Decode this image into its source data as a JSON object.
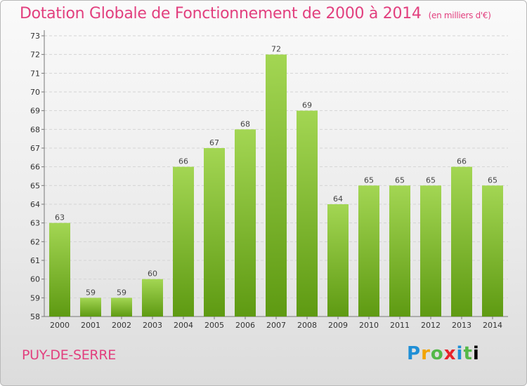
{
  "header": {
    "title": "Dotation Globale de Fonctionnement de 2000 à 2014",
    "unit": "(en milliers d'€)"
  },
  "footer": {
    "commune": "PUY-DE-SERRE",
    "logo": "Proxiti"
  },
  "chart_data": {
    "type": "bar",
    "title": "Dotation Globale de Fonctionnement de 2000 à 2014",
    "subtitle": "(en milliers d'€)",
    "xlabel": "",
    "ylabel": "",
    "categories": [
      "2000",
      "2001",
      "2002",
      "2003",
      "2004",
      "2005",
      "2006",
      "2007",
      "2008",
      "2009",
      "2010",
      "2011",
      "2012",
      "2013",
      "2014"
    ],
    "values": [
      63,
      59,
      59,
      60,
      66,
      67,
      68,
      72,
      69,
      64,
      65,
      65,
      65,
      66,
      65
    ],
    "ylim": [
      58,
      73
    ],
    "yticks": [
      58,
      59,
      60,
      61,
      62,
      63,
      64,
      65,
      66,
      67,
      68,
      69,
      70,
      71,
      72,
      73
    ],
    "grid": true,
    "colors": {
      "bar_light": "#9fd24c",
      "bar_dark": "#5e9a12",
      "title": "#e23f7e"
    }
  }
}
